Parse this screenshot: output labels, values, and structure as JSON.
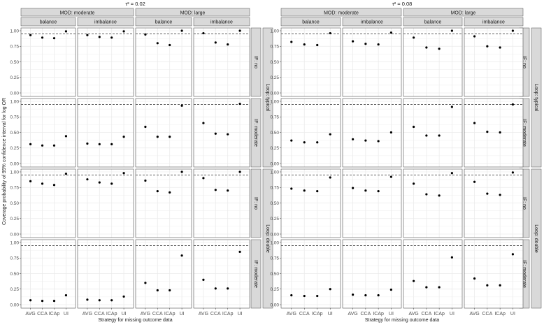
{
  "figure": {
    "x_axis_title": "Strategy for missing outcome data",
    "y_axis_title": "Coverage probability of 95% confidence interval for log OR",
    "colors": {
      "strip": "#d9d9d9",
      "strip_border": "#4d4d4d",
      "panel_border": "#4d4d4d",
      "grid": "#ebebeb",
      "point": "#000000",
      "reference_line": "#000000"
    }
  },
  "chart_data": [
    {
      "type": "scatter",
      "title": "τ² = 0.02",
      "xlabel": "Strategy for missing outcome data",
      "ylabel": "Coverage probability of 95% confidence interval for log OR",
      "categories": [
        "AVG",
        "CCA",
        "ICAp",
        "UI"
      ],
      "ylim": [
        0,
        1
      ],
      "yticks": [
        "0.00",
        "0.25",
        "0.50",
        "0.75",
        "1.00"
      ],
      "reference_line": 0.95,
      "grid": true,
      "col_strips_top": [
        "MOD: moderate",
        "MOD: large"
      ],
      "col_strips_sub": [
        "balance",
        "imbalance",
        "balance",
        "imbalance"
      ],
      "row_strips_if": [
        "IF: no",
        "IF: moderate",
        "IF: no",
        "IF: moderate"
      ],
      "row_strips_loop": [
        "Loop: typical",
        "Loop: double"
      ],
      "rows": [
        [
          [
            0.93,
            0.89,
            0.88,
            0.99
          ],
          [
            0.93,
            0.9,
            0.89,
            0.99
          ],
          [
            0.94,
            0.8,
            0.77,
            1.0
          ],
          [
            0.96,
            0.81,
            0.78,
            1.0
          ]
        ],
        [
          [
            0.31,
            0.29,
            0.29,
            0.44
          ],
          [
            0.32,
            0.31,
            0.31,
            0.43
          ],
          [
            0.59,
            0.43,
            0.43,
            0.93
          ],
          [
            0.65,
            0.48,
            0.47,
            0.96
          ]
        ],
        [
          [
            0.85,
            0.81,
            0.79,
            0.97
          ],
          [
            0.88,
            0.83,
            0.81,
            0.98
          ],
          [
            0.86,
            0.69,
            0.67,
            1.0
          ],
          [
            0.9,
            0.71,
            0.7,
            1.0
          ]
        ],
        [
          [
            0.07,
            0.06,
            0.06,
            0.15
          ],
          [
            0.08,
            0.07,
            0.07,
            0.13
          ],
          [
            0.35,
            0.23,
            0.23,
            0.79
          ],
          [
            0.4,
            0.26,
            0.26,
            0.85
          ]
        ]
      ]
    },
    {
      "type": "scatter",
      "title": "τ² = 0.08",
      "xlabel": "Strategy for missing outcome data",
      "ylabel": "Coverage probability of 95% confidence interval for log OR",
      "categories": [
        "AVG",
        "CCA",
        "ICAp",
        "UI"
      ],
      "ylim": [
        0,
        1
      ],
      "yticks": [
        "0.00",
        "0.25",
        "0.50",
        "0.75",
        "1.00"
      ],
      "reference_line": 0.95,
      "grid": true,
      "col_strips_top": [
        "MOD: moderate",
        "MOD: large"
      ],
      "col_strips_sub": [
        "balance",
        "imbalance",
        "balance",
        "imbalance"
      ],
      "row_strips_if": [
        "IF: no",
        "IF: moderate",
        "IF: no",
        "IF: moderate"
      ],
      "row_strips_loop": [
        "Loop: typical",
        "Loop: double"
      ],
      "rows": [
        [
          [
            0.82,
            0.78,
            0.77,
            0.96
          ],
          [
            0.83,
            0.79,
            0.78,
            0.97
          ],
          [
            0.89,
            0.73,
            0.71,
            1.0
          ],
          [
            0.91,
            0.75,
            0.73,
            1.0
          ]
        ],
        [
          [
            0.37,
            0.34,
            0.34,
            0.47
          ],
          [
            0.39,
            0.37,
            0.36,
            0.5
          ],
          [
            0.59,
            0.45,
            0.45,
            0.91
          ],
          [
            0.65,
            0.51,
            0.5,
            0.95
          ]
        ],
        [
          [
            0.73,
            0.7,
            0.69,
            0.91
          ],
          [
            0.74,
            0.7,
            0.69,
            0.92
          ],
          [
            0.81,
            0.64,
            0.62,
            0.98
          ],
          [
            0.84,
            0.65,
            0.63,
            0.99
          ]
        ],
        [
          [
            0.15,
            0.14,
            0.14,
            0.25
          ],
          [
            0.16,
            0.15,
            0.15,
            0.24
          ],
          [
            0.38,
            0.28,
            0.28,
            0.76
          ],
          [
            0.42,
            0.31,
            0.31,
            0.81
          ]
        ]
      ]
    }
  ]
}
